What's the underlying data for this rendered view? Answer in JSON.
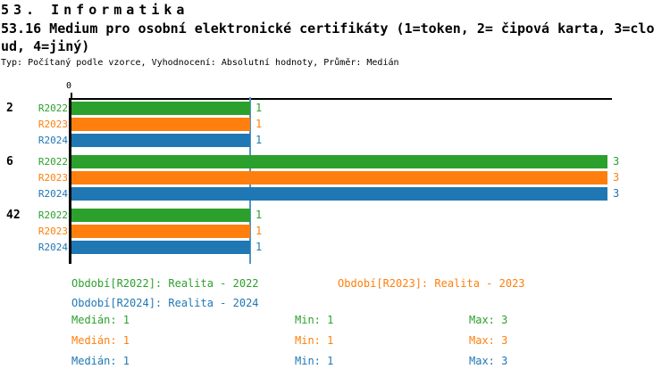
{
  "header": {
    "line1": "53. Informatika",
    "line2": "53.16 Medium pro osobní elektronické certifikáty (1=token, 2= čipová karta, 3=clo",
    "line3": "ud, 4=jiný)",
    "meta": "Typ: Počítaný podle vzorce, Vyhodnocení: Absolutní hodnoty, Průměr: Medián"
  },
  "colors": {
    "r2022": "#2ca02c",
    "r2023": "#ff7f0e",
    "r2024": "#1f77b4",
    "median_line": "#4e96cc",
    "axis": "#000000"
  },
  "axis": {
    "zero_label": "0"
  },
  "chart_data": {
    "type": "bar",
    "orientation": "horizontal",
    "title": "53.16 Medium pro osobní elektronické certifikáty (1=token, 2= čipová karta, 3=cloud, 4=jiný)",
    "subtitle": "Typ: Počítaný podle vzorce, Vyhodnocení: Absolutní hodnoty, Průměr: Medián",
    "categories": [
      "2",
      "6",
      "42"
    ],
    "series": [
      {
        "name": "R2022",
        "color": "#2ca02c",
        "values": [
          1,
          3,
          1
        ]
      },
      {
        "name": "R2023",
        "color": "#ff7f0e",
        "values": [
          1,
          3,
          1
        ]
      },
      {
        "name": "R2024",
        "color": "#1f77b4",
        "values": [
          1,
          3,
          1
        ]
      }
    ],
    "xlim": [
      0,
      3.3
    ],
    "x_tick_labels": [
      "0"
    ],
    "median_line_x": 1,
    "grid": false,
    "legend_position": "bottom",
    "bar_value_labels_shown": true
  },
  "legend": {
    "r2022": "Období[R2022]: Realita - 2022",
    "r2023": "Období[R2023]: Realita - 2023",
    "r2024": "Období[R2024]: Realita - 2024"
  },
  "stats": {
    "rows": [
      {
        "series": "R2022",
        "median": "Medián: 1",
        "min": "Min: 1",
        "max": "Max: 3"
      },
      {
        "series": "R2023",
        "median": "Medián: 1",
        "min": "Min: 1",
        "max": "Max: 3"
      },
      {
        "series": "R2024",
        "median": "Medián: 1",
        "min": "Min: 1",
        "max": "Max: 3"
      }
    ]
  }
}
